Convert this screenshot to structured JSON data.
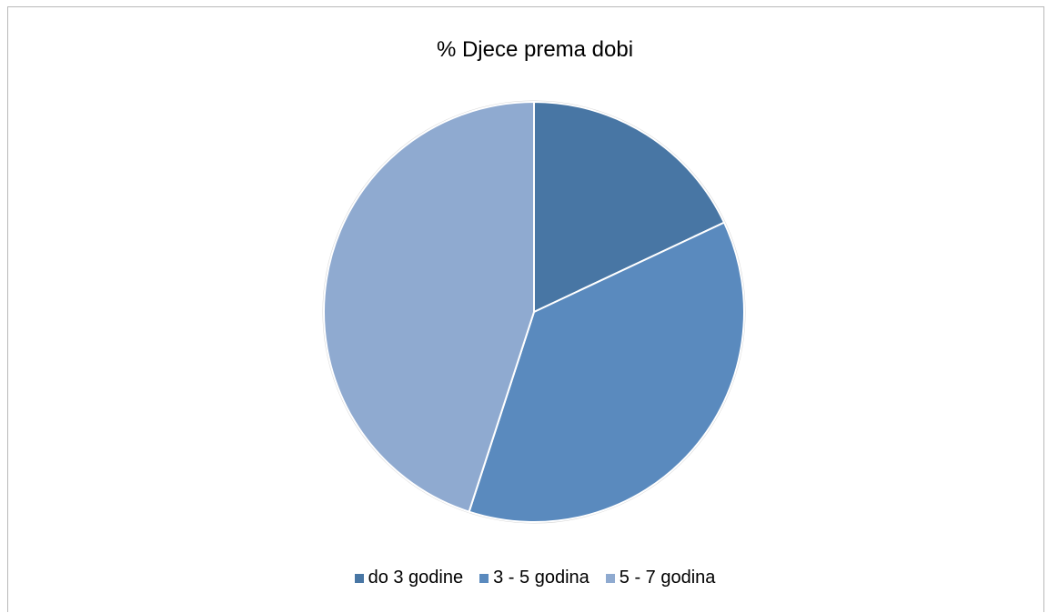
{
  "chart_data": {
    "type": "pie",
    "title": "% Djece prema dobi",
    "categories": [
      "do 3 godine",
      "3 - 5 godina",
      "5 - 7 godina"
    ],
    "values": [
      18,
      37,
      45
    ],
    "colors": [
      "#4876a4",
      "#5a8abe",
      "#8faad0"
    ],
    "start_angle_deg": 0,
    "direction": "clockwise",
    "legend_position": "bottom"
  }
}
